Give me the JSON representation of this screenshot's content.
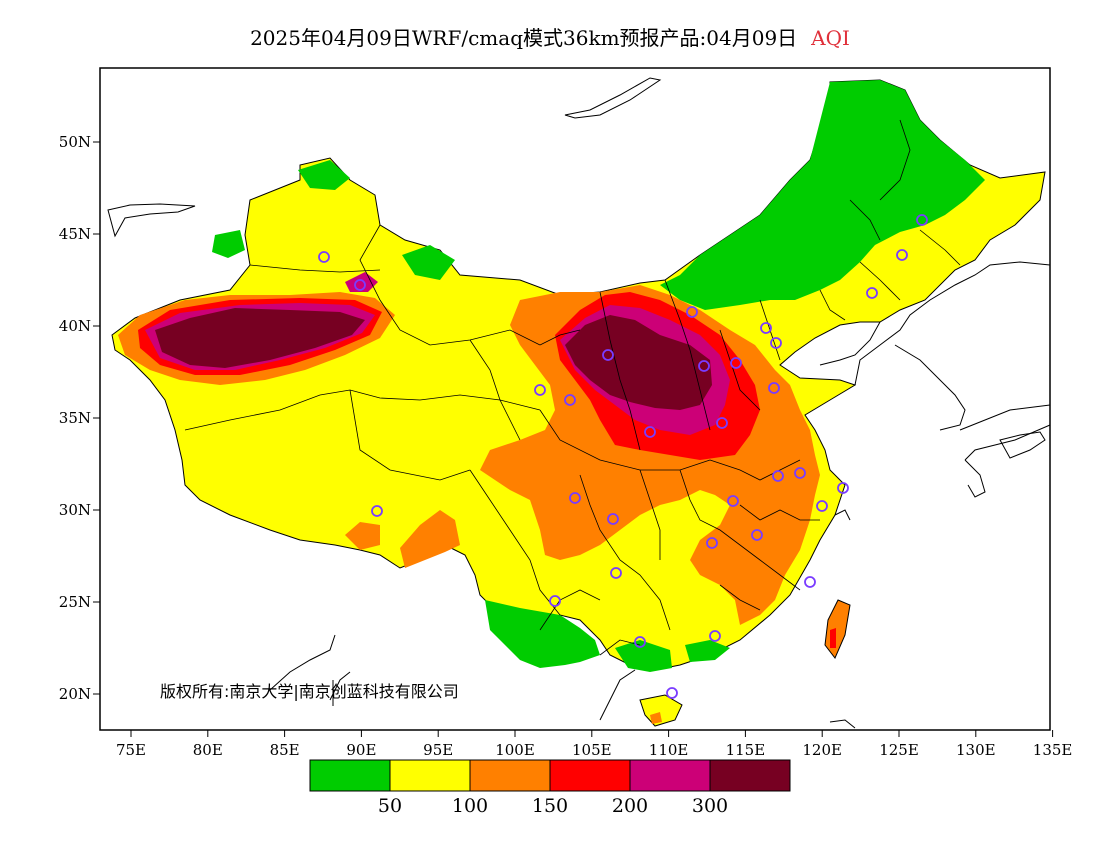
{
  "title": {
    "main": "2025年04月09日WRF/cmaq模式36km预报产品:04月09日",
    "variable": "AQI"
  },
  "copyright": "版权所有:南京大学|南京创蓝科技有限公司",
  "axes": {
    "x_ticks": [
      "75E",
      "80E",
      "85E",
      "90E",
      "95E",
      "100E",
      "105E",
      "110E",
      "115E",
      "120E",
      "125E",
      "130E",
      "135E"
    ],
    "y_ticks": [
      "20N",
      "25N",
      "30N",
      "35N",
      "40N",
      "45N",
      "50N"
    ]
  },
  "legend": {
    "colors": [
      "#00cc00",
      "#ffff00",
      "#ff8000",
      "#ff0000",
      "#cc0077",
      "#770022"
    ],
    "labels": [
      "50",
      "100",
      "150",
      "200",
      "300"
    ]
  },
  "colors": {
    "good": "#00cc00",
    "moderate": "#ffff00",
    "unhealthy_sensitive": "#ff8000",
    "unhealthy": "#ff0000",
    "very_unhealthy": "#cc0077",
    "hazardous": "#770022",
    "station_marker": "#7a3cff"
  }
}
